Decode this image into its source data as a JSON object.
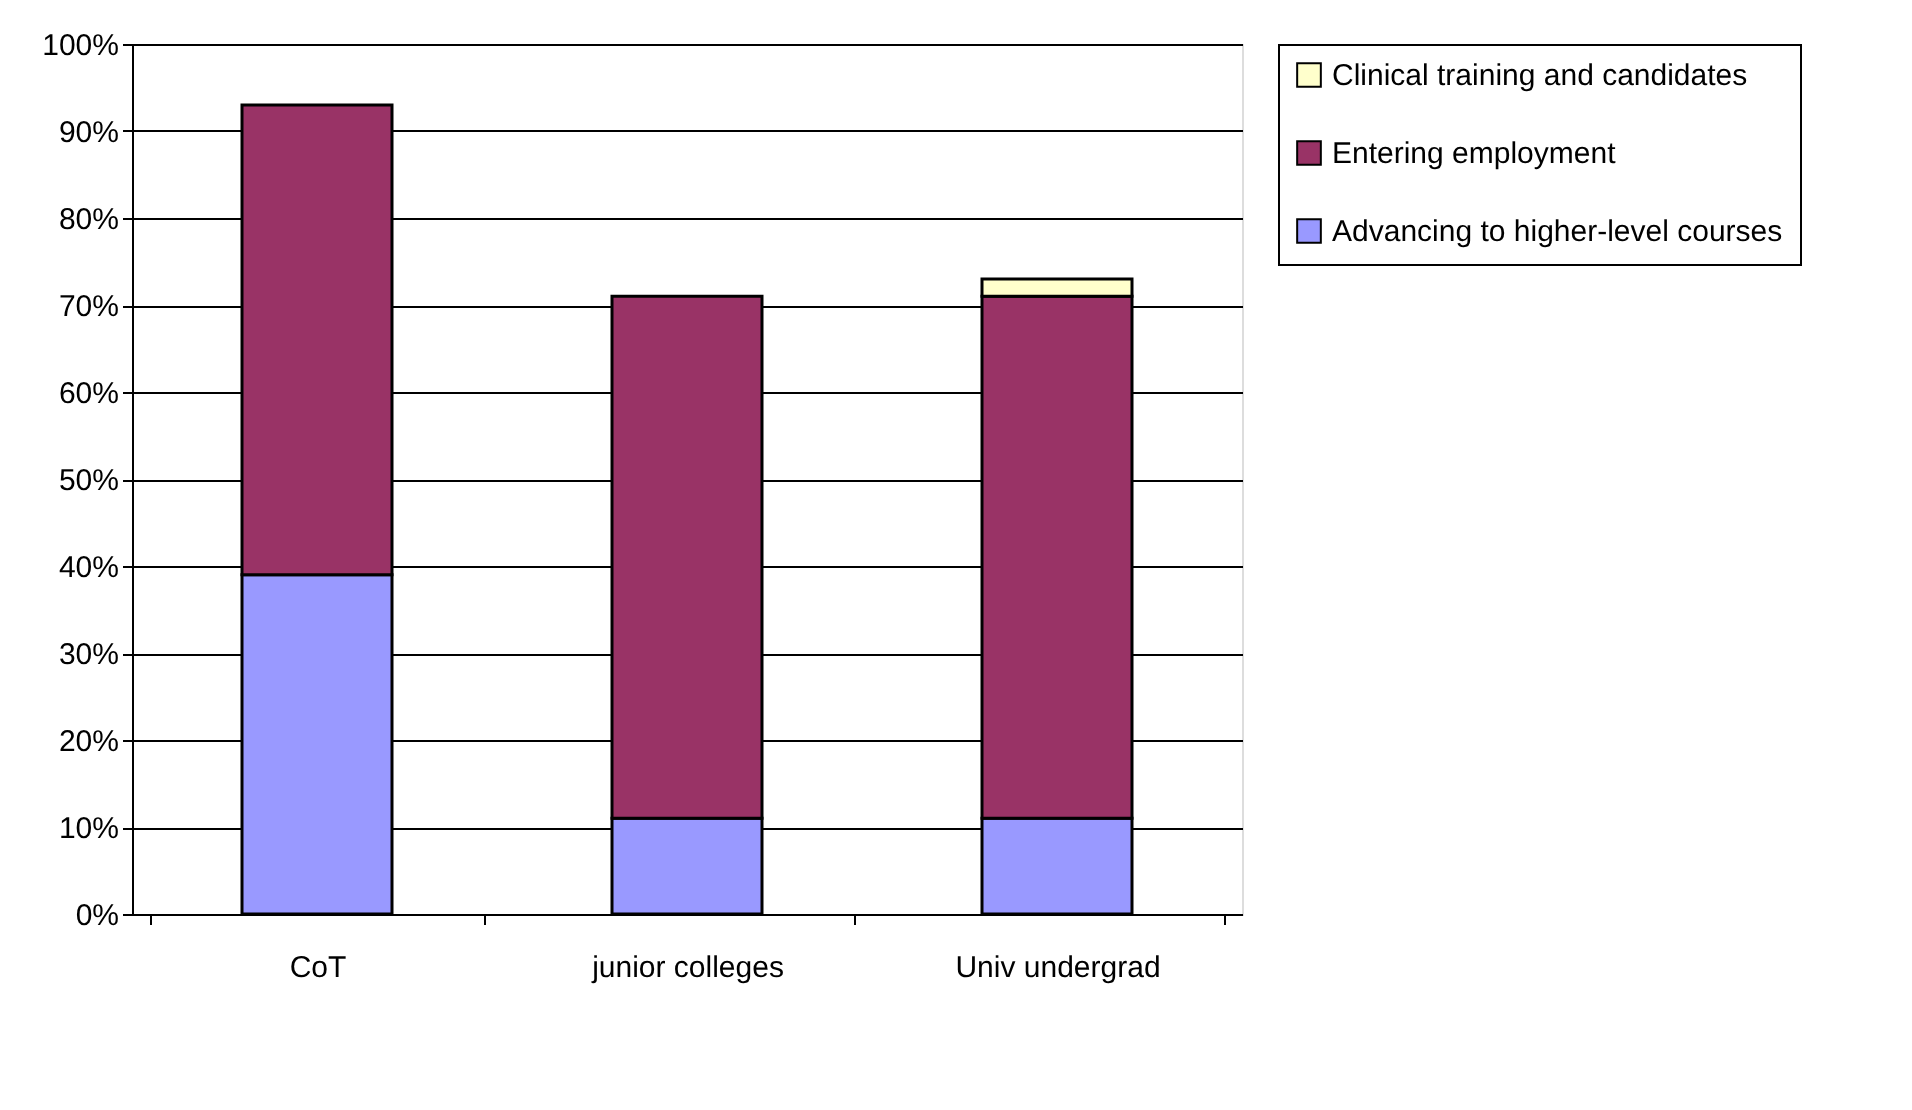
{
  "chart_data": {
    "type": "bar",
    "stacked": true,
    "categories": [
      "CoT",
      "junior colleges",
      "Univ undergrad"
    ],
    "series": [
      {
        "name": "Advancing to higher-level courses",
        "color": "#9999ff",
        "values": [
          39,
          11,
          11
        ]
      },
      {
        "name": "Entering employment",
        "color": "#993366",
        "values": [
          54,
          60,
          60
        ]
      },
      {
        "name": "Clinical training and candidates",
        "color": "#ffffcc",
        "values": [
          null,
          null,
          2
        ]
      }
    ],
    "ylim": [
      0,
      100
    ],
    "yticks": [
      {
        "value": 0,
        "label": "0%"
      },
      {
        "value": 10,
        "label": "10%"
      },
      {
        "value": 20,
        "label": "20%"
      },
      {
        "value": 30,
        "label": "30%"
      },
      {
        "value": 40,
        "label": "40%"
      },
      {
        "value": 50,
        "label": "50%"
      },
      {
        "value": 60,
        "label": "60%"
      },
      {
        "value": 70,
        "label": "70%"
      },
      {
        "value": 80,
        "label": "80%"
      },
      {
        "value": 90,
        "label": "90%"
      },
      {
        "value": 100,
        "label": "100%"
      }
    ],
    "grid": "y",
    "legend": "right"
  }
}
